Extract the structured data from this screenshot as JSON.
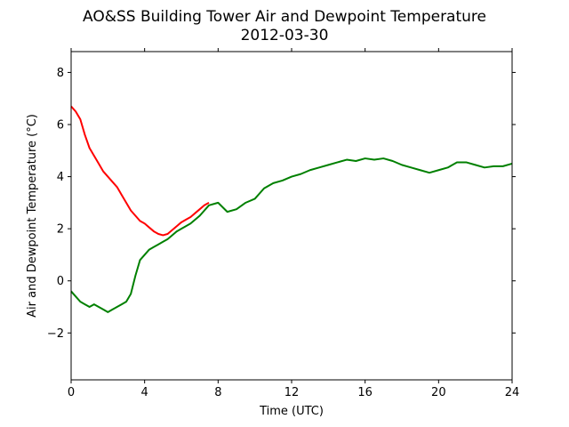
{
  "chart_data": {
    "type": "line",
    "title": "AO&SS Building Tower Air and Dewpoint Temperature",
    "subtitle": "2012-03-30",
    "xlabel": "Time (UTC)",
    "ylabel": "Air and Dewpoint Temperature (°C)",
    "xlim": [
      0,
      24
    ],
    "ylim": [
      -3.8,
      8.8
    ],
    "xticks": [
      0,
      4,
      8,
      12,
      16,
      20,
      24
    ],
    "yticks": [
      -2,
      0,
      2,
      4,
      6,
      8
    ],
    "grid": false,
    "legend": "none",
    "series": [
      {
        "color": "#ff0000",
        "x": [
          0,
          0.25,
          0.5,
          0.75,
          1.0,
          1.25,
          1.5,
          1.75,
          2.0,
          2.25,
          2.5,
          2.75,
          3.0,
          3.25,
          3.5,
          3.75,
          4.0,
          4.25,
          4.5,
          4.75,
          5.0,
          5.25,
          5.5,
          5.75,
          6.0,
          6.25,
          6.5,
          6.75,
          7.0,
          7.25,
          7.5
        ],
        "values": [
          6.7,
          6.5,
          6.2,
          5.6,
          5.1,
          4.8,
          4.5,
          4.2,
          4.0,
          3.8,
          3.6,
          3.3,
          3.0,
          2.7,
          2.5,
          2.3,
          2.2,
          2.05,
          1.9,
          1.8,
          1.75,
          1.8,
          1.95,
          2.1,
          2.25,
          2.35,
          2.45,
          2.6,
          2.75,
          2.9,
          3.0
        ]
      },
      {
        "color": "#008000",
        "x": [
          0,
          0.25,
          0.5,
          0.75,
          1.0,
          1.25,
          1.5,
          1.75,
          2.0,
          2.25,
          2.5,
          2.75,
          3.0,
          3.25,
          3.5,
          3.75,
          4.0,
          4.25,
          4.5,
          4.75,
          5.0,
          5.25,
          5.5,
          5.75,
          6.0,
          6.5,
          7.0,
          7.5,
          8.0,
          8.5,
          9.0,
          9.5,
          10.0,
          10.5,
          11.0,
          11.5,
          12.0,
          12.5,
          13.0,
          13.5,
          14.0,
          14.5,
          15.0,
          15.5,
          16.0,
          16.5,
          17.0,
          17.5,
          18.0,
          18.5,
          19.0,
          19.5,
          20.0,
          20.5,
          21.0,
          21.5,
          22.0,
          22.5,
          23.0,
          23.5,
          24.0
        ],
        "values": [
          -0.4,
          -0.6,
          -0.8,
          -0.9,
          -1.0,
          -0.9,
          -1.0,
          -1.1,
          -1.2,
          -1.1,
          -1.0,
          -0.9,
          -0.8,
          -0.5,
          0.2,
          0.8,
          1.0,
          1.2,
          1.3,
          1.4,
          1.5,
          1.6,
          1.75,
          1.9,
          2.0,
          2.2,
          2.5,
          2.9,
          3.0,
          2.65,
          2.75,
          3.0,
          3.15,
          3.55,
          3.75,
          3.85,
          4.0,
          4.1,
          4.25,
          4.35,
          4.45,
          4.55,
          4.65,
          4.6,
          4.7,
          4.65,
          4.7,
          4.6,
          4.45,
          4.35,
          4.25,
          4.15,
          4.25,
          4.35,
          4.55,
          4.55,
          4.45,
          4.35,
          4.4,
          4.4,
          4.5
        ]
      }
    ]
  }
}
